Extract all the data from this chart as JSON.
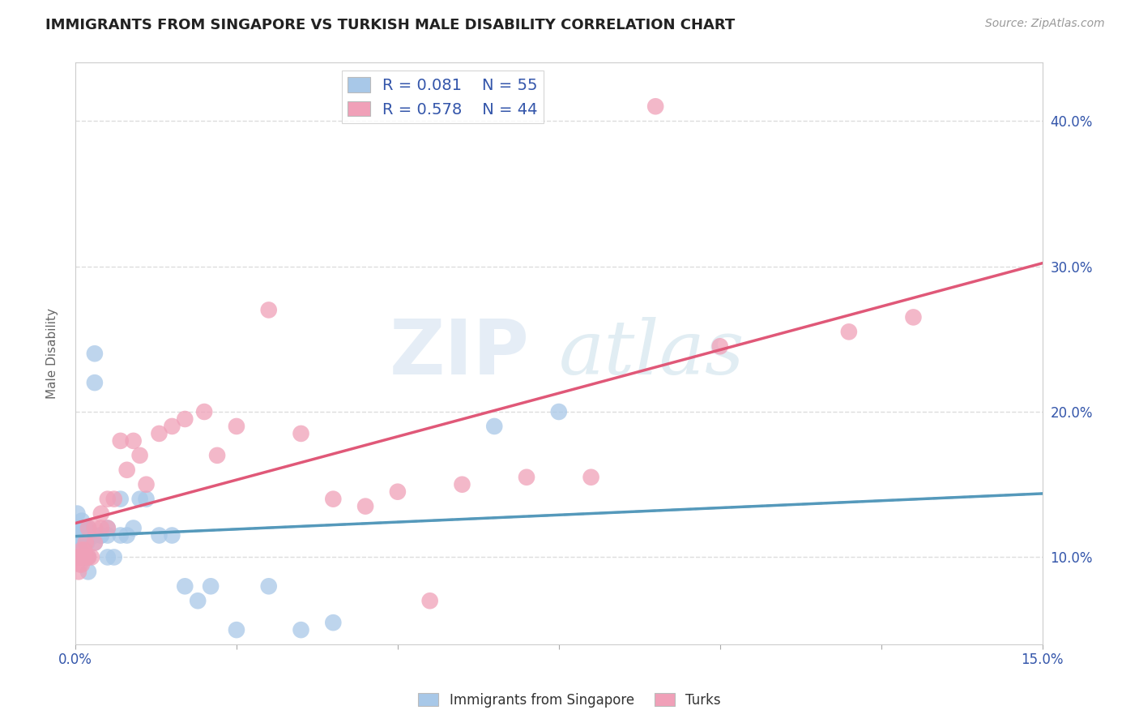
{
  "title": "IMMIGRANTS FROM SINGAPORE VS TURKISH MALE DISABILITY CORRELATION CHART",
  "source_text": "Source: ZipAtlas.com",
  "ylabel": "Male Disability",
  "xlim": [
    0.0,
    0.15
  ],
  "ylim": [
    0.04,
    0.44
  ],
  "yticks_right": [
    0.1,
    0.2,
    0.3,
    0.4
  ],
  "ytick_right_labels": [
    "10.0%",
    "20.0%",
    "30.0%",
    "40.0%"
  ],
  "singapore_color": "#a8c8e8",
  "turks_color": "#f0a0b8",
  "singapore_line_color": "#5599bb",
  "turks_line_color": "#e05878",
  "singapore_R": 0.081,
  "singapore_N": 55,
  "turks_R": 0.578,
  "turks_N": 44,
  "singapore_x": [
    0.0003,
    0.0004,
    0.0005,
    0.0006,
    0.0006,
    0.0007,
    0.0008,
    0.0009,
    0.001,
    0.001,
    0.001,
    0.001,
    0.001,
    0.0012,
    0.0012,
    0.0013,
    0.0014,
    0.0015,
    0.0015,
    0.0016,
    0.0017,
    0.0018,
    0.0019,
    0.002,
    0.002,
    0.002,
    0.002,
    0.0025,
    0.003,
    0.003,
    0.003,
    0.003,
    0.004,
    0.004,
    0.005,
    0.005,
    0.005,
    0.006,
    0.007,
    0.007,
    0.008,
    0.009,
    0.01,
    0.011,
    0.013,
    0.015,
    0.017,
    0.019,
    0.021,
    0.025,
    0.03,
    0.035,
    0.04,
    0.065,
    0.075
  ],
  "singapore_y": [
    0.13,
    0.12,
    0.115,
    0.11,
    0.115,
    0.12,
    0.115,
    0.11,
    0.115,
    0.12,
    0.125,
    0.1,
    0.115,
    0.1,
    0.115,
    0.11,
    0.115,
    0.11,
    0.12,
    0.115,
    0.12,
    0.11,
    0.115,
    0.09,
    0.1,
    0.115,
    0.12,
    0.115,
    0.22,
    0.24,
    0.115,
    0.11,
    0.115,
    0.115,
    0.1,
    0.115,
    0.12,
    0.1,
    0.14,
    0.115,
    0.115,
    0.12,
    0.14,
    0.14,
    0.115,
    0.115,
    0.08,
    0.07,
    0.08,
    0.05,
    0.08,
    0.05,
    0.055,
    0.19,
    0.2
  ],
  "turks_x": [
    0.0003,
    0.0005,
    0.0007,
    0.0009,
    0.001,
    0.001,
    0.0012,
    0.0014,
    0.0016,
    0.0018,
    0.002,
    0.002,
    0.0025,
    0.003,
    0.003,
    0.004,
    0.004,
    0.005,
    0.005,
    0.006,
    0.007,
    0.008,
    0.009,
    0.01,
    0.011,
    0.013,
    0.015,
    0.017,
    0.02,
    0.022,
    0.025,
    0.03,
    0.035,
    0.04,
    0.045,
    0.05,
    0.055,
    0.06,
    0.07,
    0.08,
    0.09,
    0.1,
    0.12,
    0.13
  ],
  "turks_y": [
    0.1,
    0.09,
    0.095,
    0.1,
    0.095,
    0.105,
    0.1,
    0.105,
    0.11,
    0.1,
    0.12,
    0.1,
    0.1,
    0.11,
    0.12,
    0.12,
    0.13,
    0.12,
    0.14,
    0.14,
    0.18,
    0.16,
    0.18,
    0.17,
    0.15,
    0.185,
    0.19,
    0.195,
    0.2,
    0.17,
    0.19,
    0.27,
    0.185,
    0.14,
    0.135,
    0.145,
    0.07,
    0.15,
    0.155,
    0.155,
    0.41,
    0.245,
    0.255,
    0.265
  ],
  "watermark_zip": "ZIP",
  "watermark_atlas": "atlas",
  "background_color": "#ffffff",
  "grid_color": "#dddddd",
  "title_fontsize": 13,
  "axis_label_color": "#3355aa",
  "axis_tick_color": "#3355aa"
}
